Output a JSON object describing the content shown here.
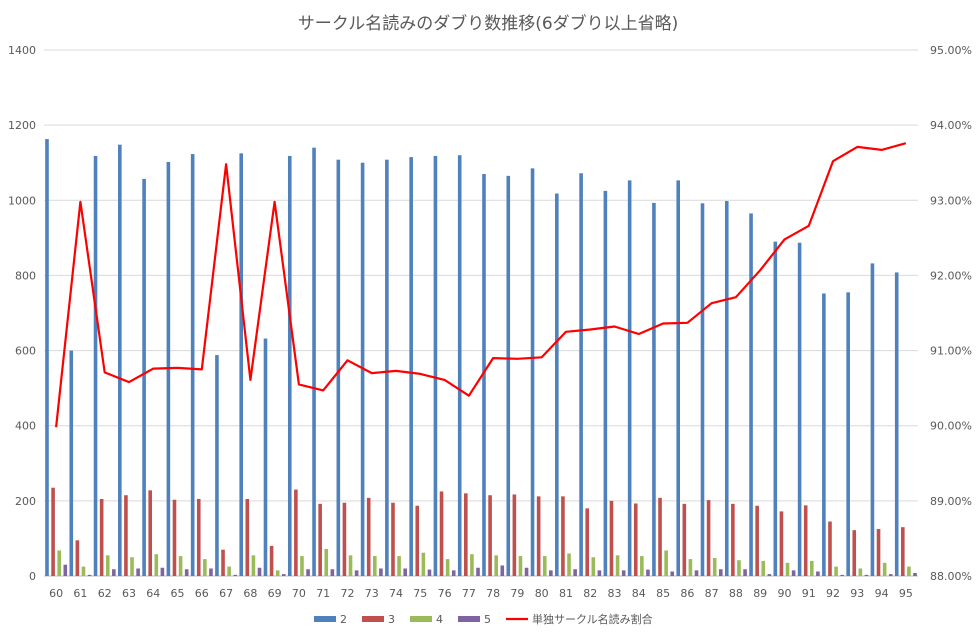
{
  "chart_data": {
    "type": "bar",
    "title": "サークル名読みのダブり数推移(6ダブり以上省略)",
    "categories": [
      "60",
      "61",
      "62",
      "63",
      "64",
      "65",
      "66",
      "67",
      "68",
      "69",
      "70",
      "71",
      "72",
      "73",
      "74",
      "75",
      "76",
      "77",
      "78",
      "79",
      "80",
      "81",
      "82",
      "83",
      "84",
      "85",
      "86",
      "87",
      "88",
      "89",
      "90",
      "91",
      "92",
      "93",
      "94",
      "95"
    ],
    "ylim": [
      0,
      1400
    ],
    "y_ticks": [
      "0",
      "200",
      "400",
      "600",
      "800",
      "1000",
      "1200",
      "1400"
    ],
    "y2lim": [
      88,
      95
    ],
    "y2_ticks": [
      "88.00%",
      "89.00%",
      "90.00%",
      "91.00%",
      "92.00%",
      "93.00%",
      "94.00%",
      "95.00%"
    ],
    "grid": true,
    "legend_position": "bottom",
    "series": [
      {
        "name": "2",
        "color": "#4f81bd",
        "values": [
          1163,
          600,
          1118,
          1148,
          1057,
          1102,
          1123,
          588,
          1125,
          632,
          1118,
          1140,
          1108,
          1100,
          1108,
          1115,
          1118,
          1120,
          1070,
          1065,
          1085,
          1018,
          1072,
          1025,
          1053,
          993,
          1053,
          992,
          998,
          965,
          890,
          887,
          752,
          755,
          832,
          808
        ]
      },
      {
        "name": "3",
        "color": "#c0504d",
        "values": [
          235,
          95,
          205,
          215,
          228,
          203,
          205,
          70,
          205,
          80,
          230,
          192,
          195,
          208,
          195,
          187,
          225,
          220,
          215,
          217,
          212,
          212,
          180,
          200,
          193,
          208,
          192,
          202,
          192,
          187,
          172,
          188,
          145,
          122,
          125,
          130
        ]
      },
      {
        "name": "4",
        "color": "#9bbb59",
        "values": [
          68,
          25,
          55,
          50,
          58,
          53,
          45,
          25,
          55,
          15,
          53,
          72,
          55,
          53,
          53,
          62,
          45,
          58,
          55,
          53,
          53,
          60,
          50,
          55,
          53,
          68,
          45,
          48,
          42,
          40,
          35,
          40,
          25,
          20,
          35,
          25
        ]
      },
      {
        "name": "5",
        "color": "#8064a2",
        "values": [
          30,
          3,
          18,
          20,
          22,
          18,
          20,
          3,
          22,
          5,
          18,
          18,
          15,
          20,
          20,
          17,
          15,
          22,
          28,
          22,
          15,
          18,
          15,
          15,
          17,
          12,
          15,
          18,
          18,
          5,
          15,
          12,
          3,
          3,
          5,
          8
        ]
      },
      {
        "name": "単独サークル名読み割合",
        "color": "#ff0000",
        "type": "line",
        "axis": "secondary",
        "values": [
          89.98,
          92.98,
          90.71,
          90.58,
          90.76,
          90.77,
          90.75,
          93.48,
          90.61,
          92.98,
          90.55,
          90.47,
          90.87,
          90.7,
          90.73,
          90.69,
          90.61,
          90.4,
          90.9,
          90.89,
          90.91,
          91.25,
          91.28,
          91.32,
          91.22,
          91.36,
          91.37,
          91.63,
          91.71,
          92.07,
          92.48,
          92.66,
          93.52,
          93.71,
          93.67,
          93.76
        ]
      }
    ]
  }
}
